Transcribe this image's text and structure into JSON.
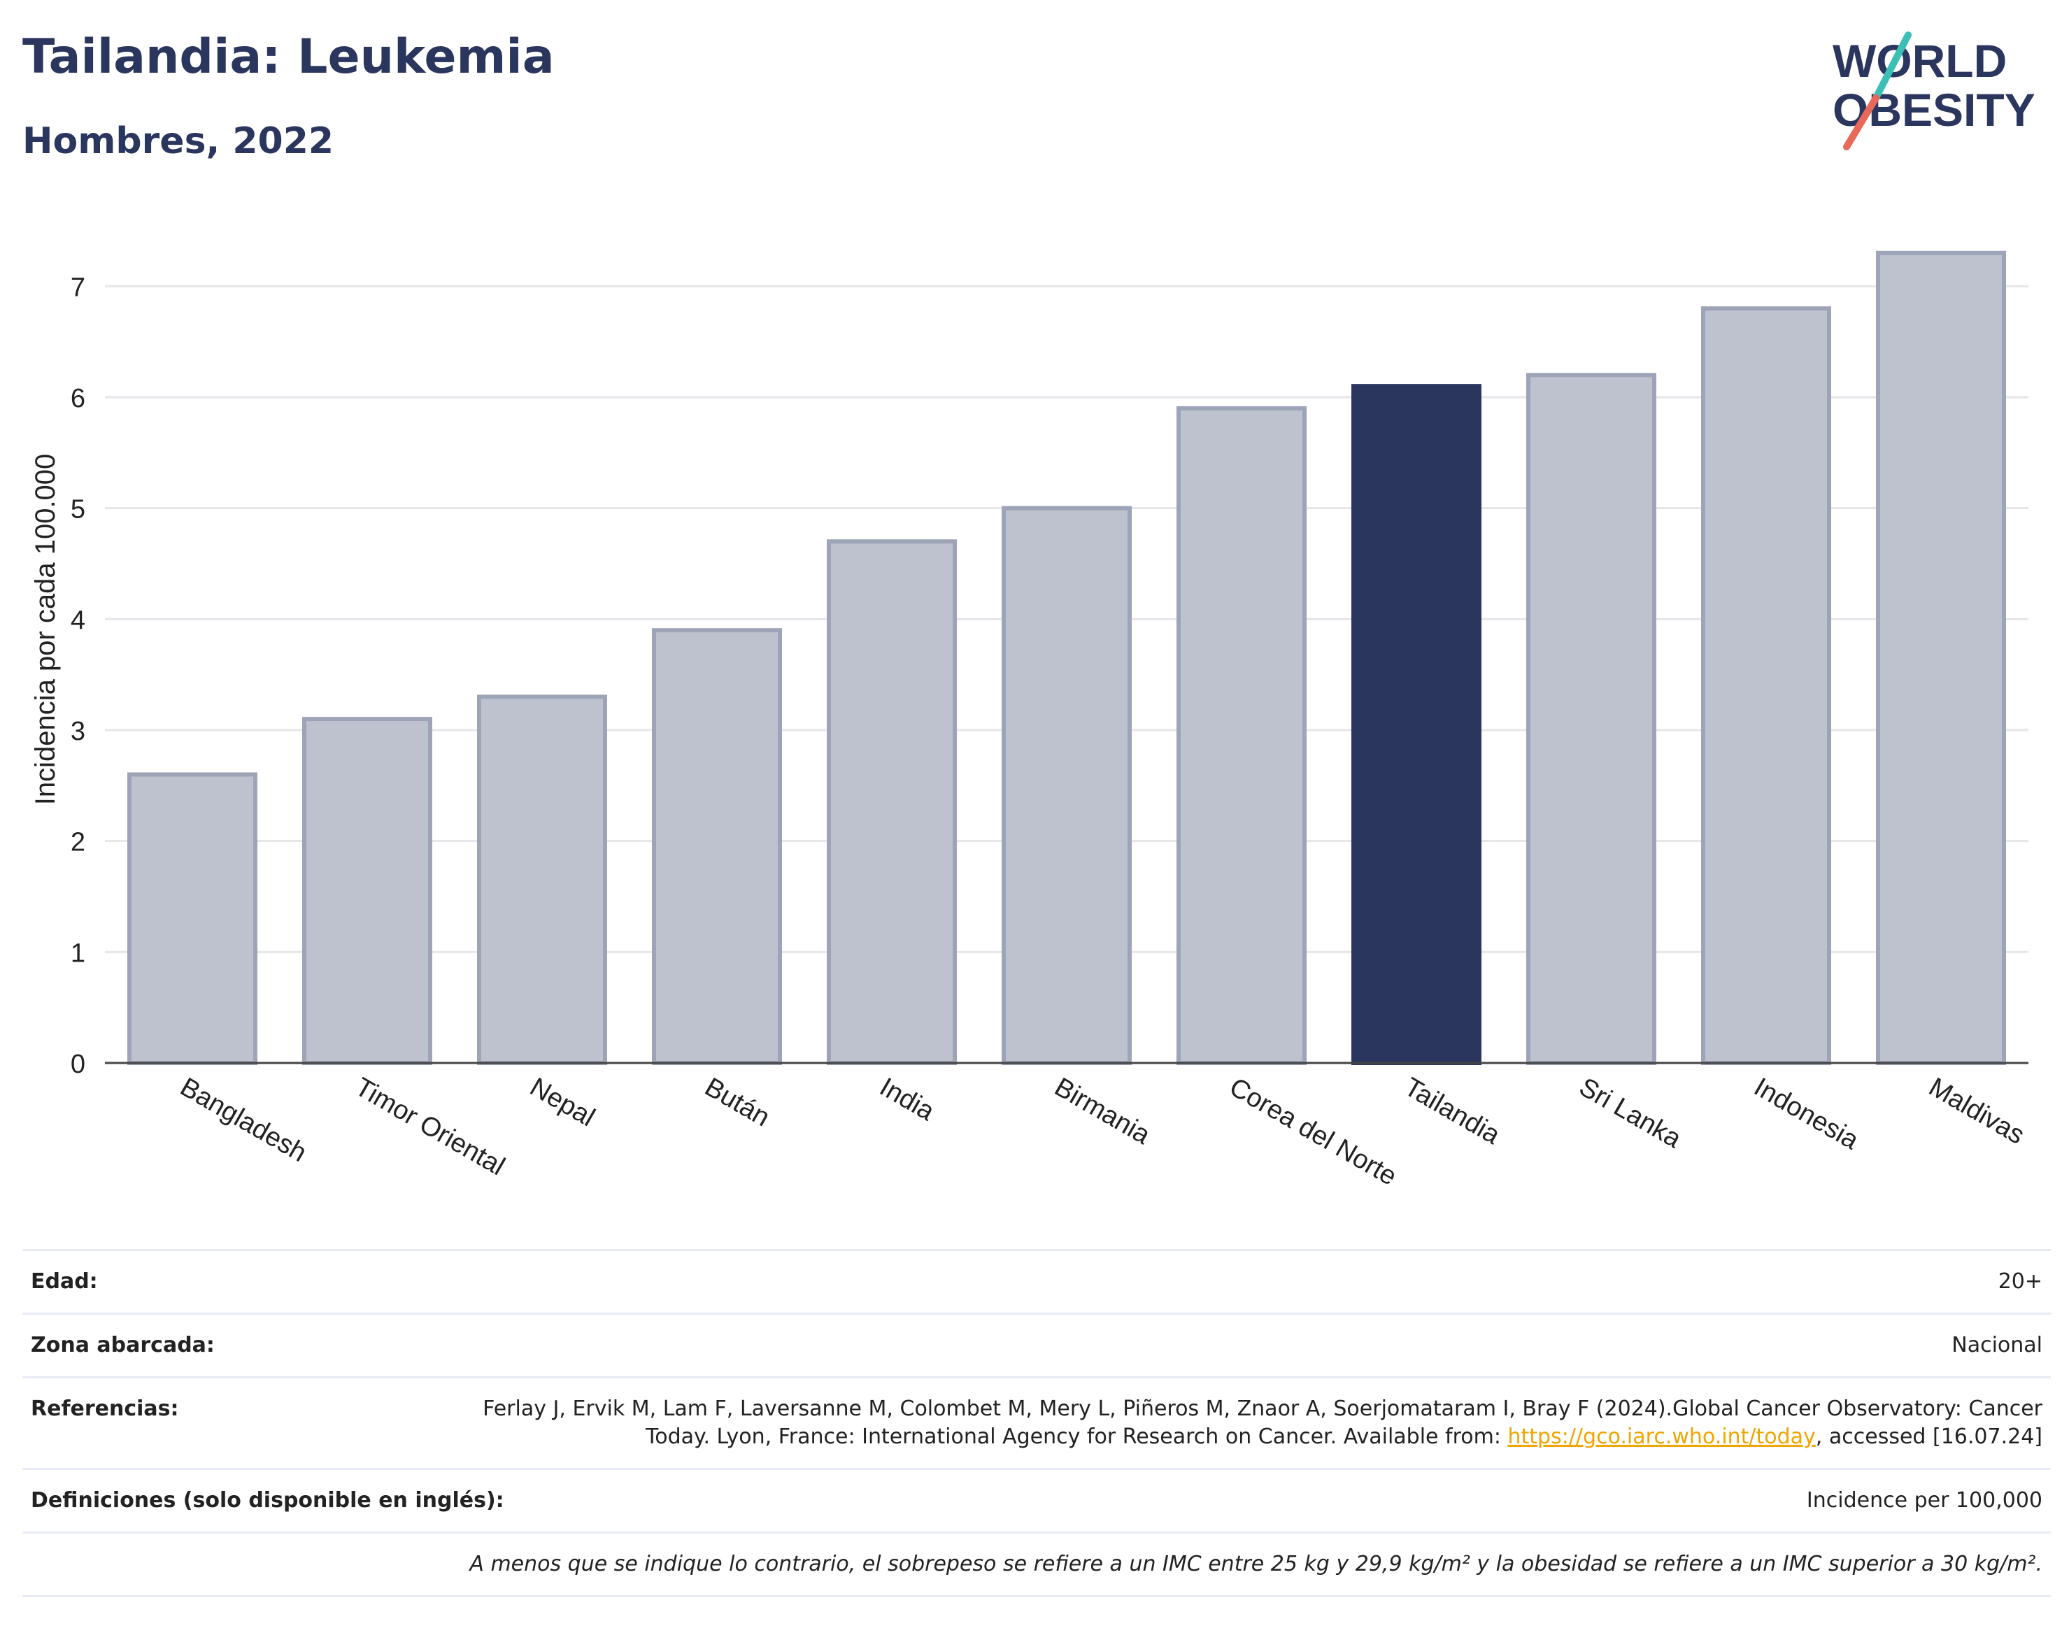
{
  "header": {
    "title": "Tailandia: Leukemia",
    "subtitle": "Hombres, 2022",
    "logo_line1": "WORLD",
    "logo_line2": "OBESITY"
  },
  "chart_data": {
    "type": "bar",
    "categories": [
      "Bangladesh",
      "Timor Oriental",
      "Nepal",
      "Bután",
      "India",
      "Birmania",
      "Corea del Norte",
      "Tailandia",
      "Sri Lanka",
      "Indonesia",
      "Maldivas"
    ],
    "values": [
      2.6,
      3.1,
      3.3,
      3.9,
      4.7,
      5.0,
      5.9,
      6.1,
      6.2,
      6.8,
      7.3
    ],
    "highlight": "Tailandia",
    "ylabel": "Incidencia por cada 100.000",
    "xlabel": "",
    "ylim": [
      0,
      7.5
    ],
    "yticks": [
      0,
      1,
      2,
      3,
      4,
      5,
      6,
      7
    ],
    "grid": true,
    "colors": {
      "bar": "#bec2cf",
      "bar_border": "#9ea4b8",
      "highlight": "#2b365e",
      "grid": "#e6e6ea",
      "axis": "#444444"
    }
  },
  "meta": {
    "age_label": "Edad:",
    "age_value": "20+",
    "area_label": "Zona abarcada:",
    "area_value": "Nacional",
    "refs_label": "Referencias:",
    "refs_text": "Ferlay J, Ervik M, Lam F, Laversanne M, Colombet M, Mery L, Piñeros M, Znaor A, Soerjomataram I, Bray F (2024).Global Cancer Observatory: Cancer Today. Lyon, France: International Agency for Research on Cancer. Available from: ",
    "refs_link": "https://gco.iarc.who.int/today",
    "refs_suffix": ", accessed [16.07.24]",
    "defs_label": "Definiciones (solo disponible en inglés):",
    "defs_value": "Incidence per 100,000",
    "note": "A menos que se indique lo contrario, el sobrepeso se refiere a un IMC entre 25 kg y 29,9 kg/m² y la obesidad se refiere a un IMC superior a 30 kg/m²."
  }
}
